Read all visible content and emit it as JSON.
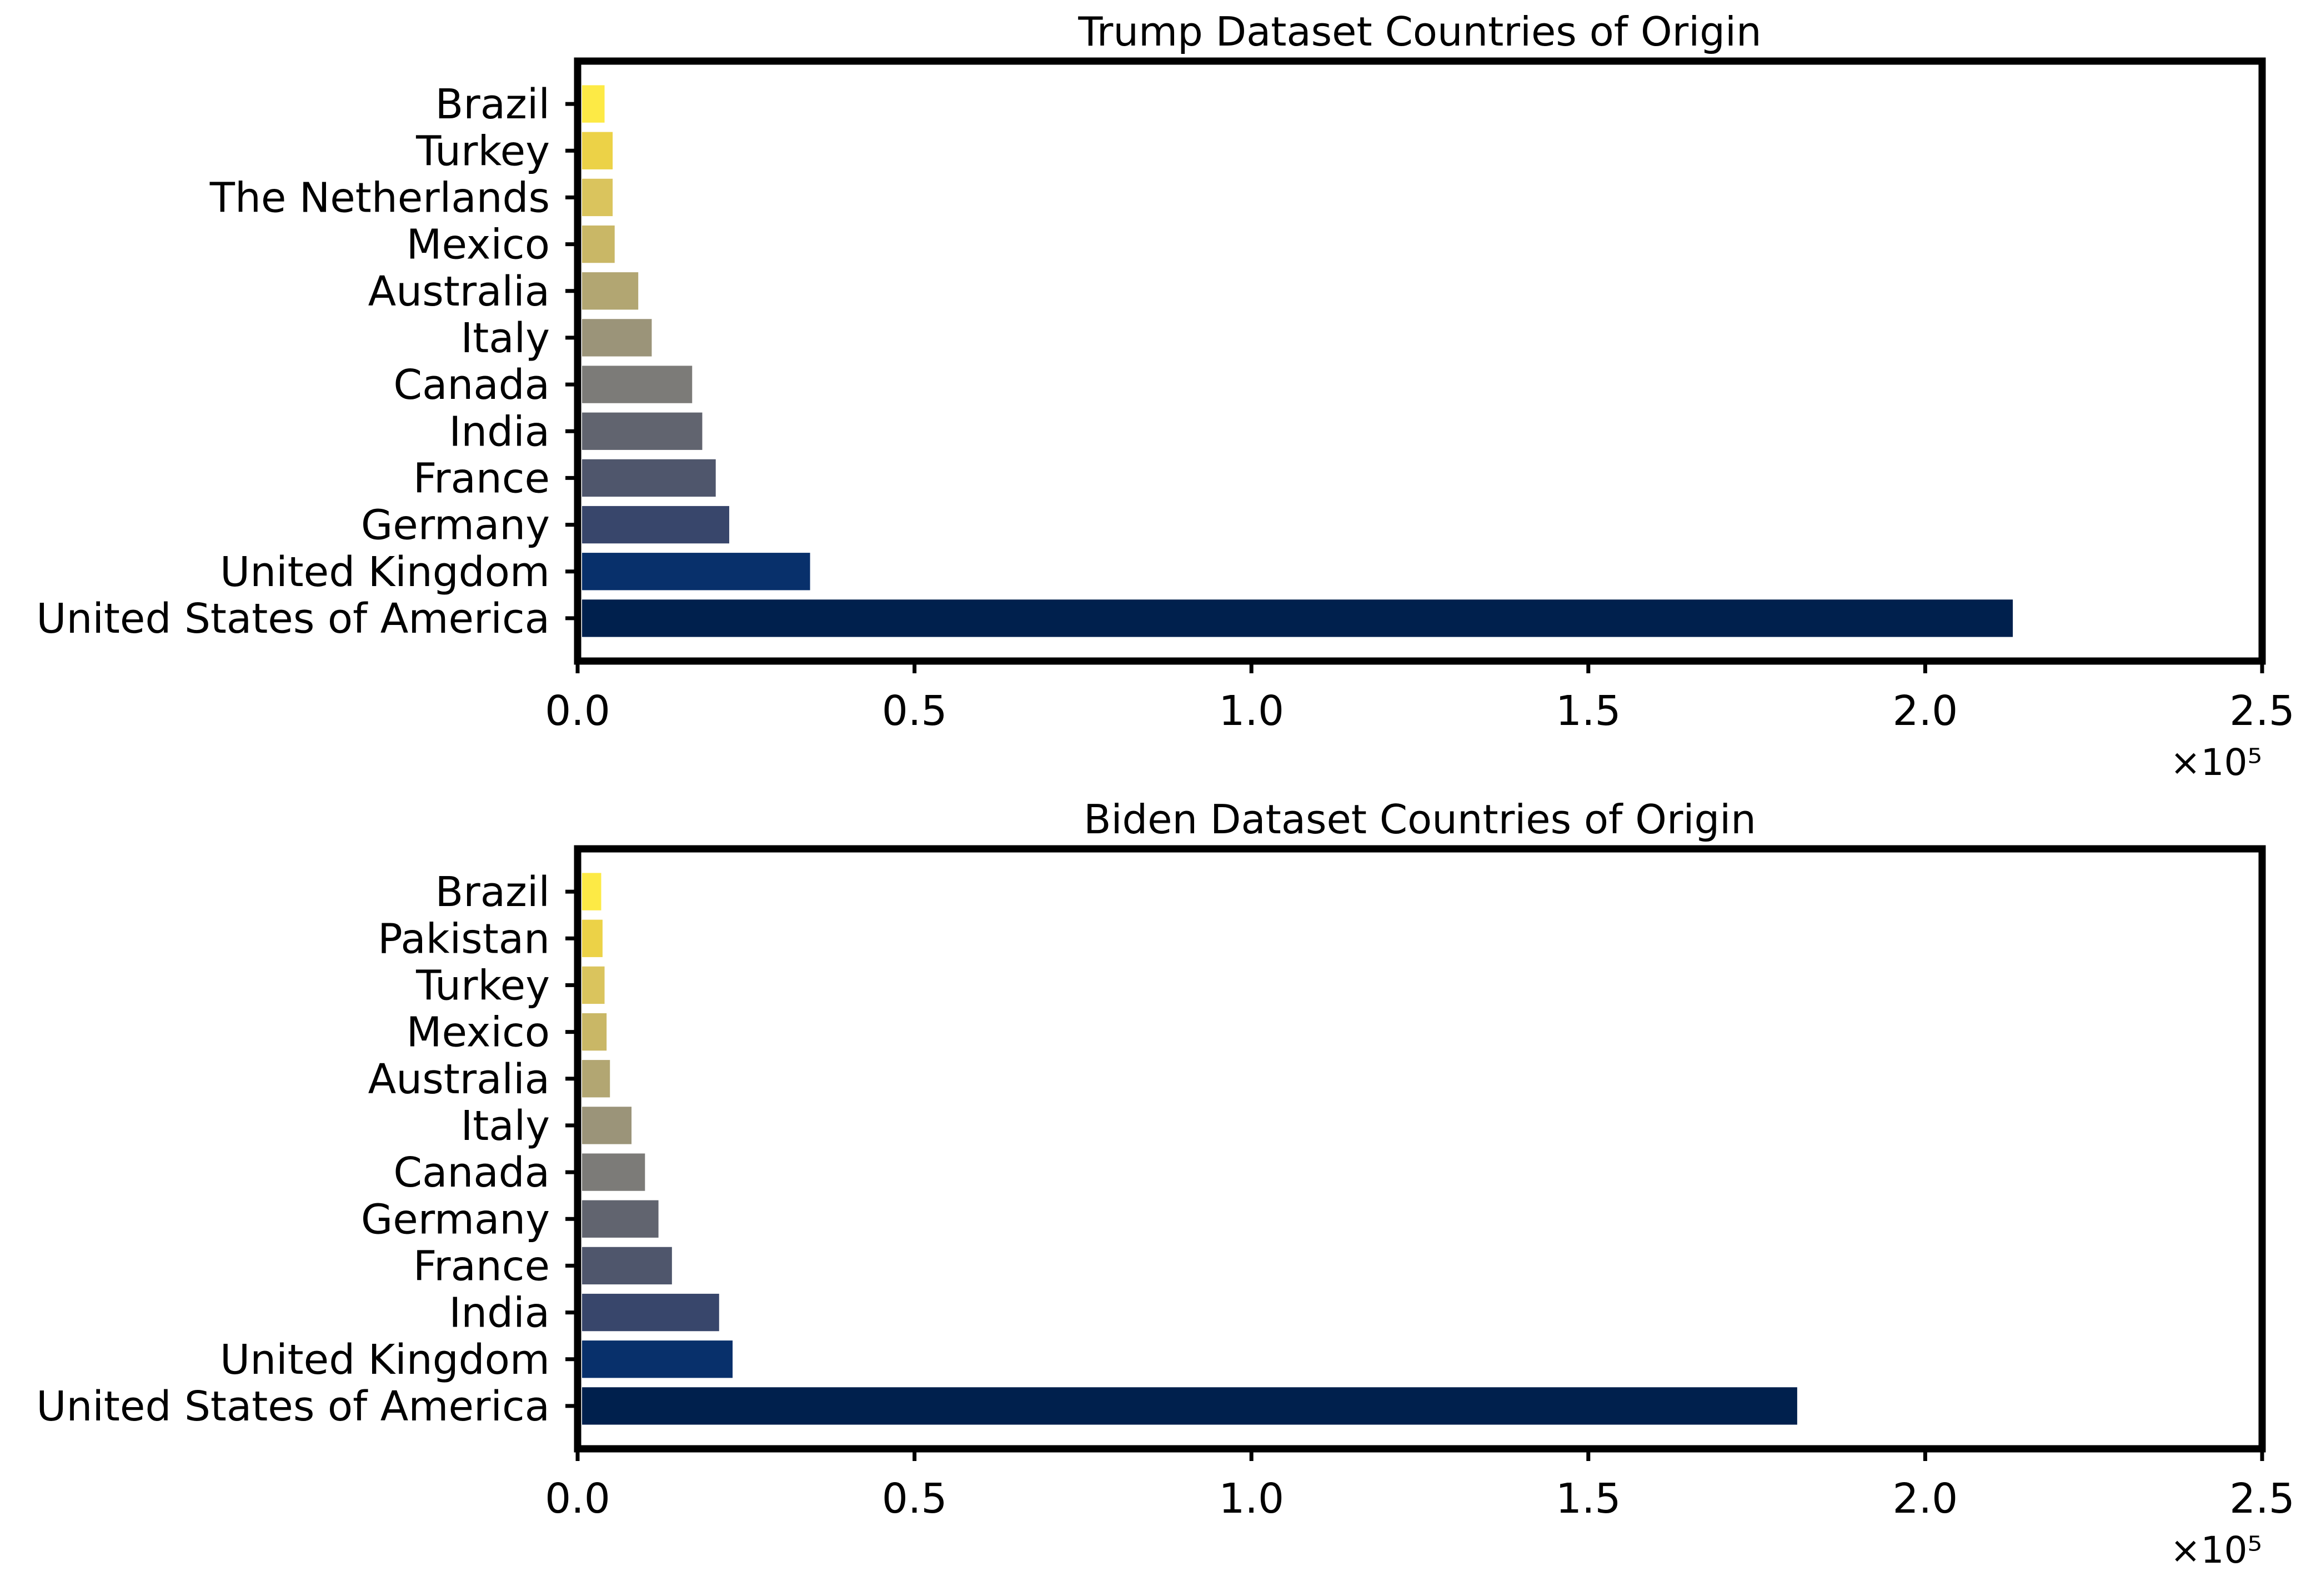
{
  "chart_data": [
    {
      "type": "bar",
      "orientation": "horizontal",
      "title": "Trump Dataset Countries of Origin",
      "xlabel": "",
      "ylabel": "",
      "categories": [
        "United States of America",
        "United Kingdom",
        "Germany",
        "France",
        "India",
        "Canada",
        "Italy",
        "Australia",
        "Mexico",
        "The Netherlands",
        "Turkey",
        "Brazil"
      ],
      "values": [
        213000,
        34500,
        22500,
        20500,
        18500,
        17000,
        11000,
        9000,
        5500,
        5200,
        5200,
        4000
      ],
      "colors": [
        "#00204d",
        "#08306b",
        "#38466b",
        "#4f566c",
        "#61646f",
        "#7c7b78",
        "#9b9479",
        "#b2a672",
        "#c9b766",
        "#dac45d",
        "#ecd247",
        "#fdea45"
      ],
      "xlim": [
        0,
        250000
      ],
      "x_ticks": [
        "0.0",
        "0.5",
        "1.0",
        "1.5",
        "2.0",
        "2.5"
      ],
      "x_multiplier_label": "×10⁵",
      "grid": false,
      "legend": "none"
    },
    {
      "type": "bar",
      "orientation": "horizontal",
      "title": "Biden Dataset Countries of Origin",
      "xlabel": "",
      "ylabel": "",
      "categories": [
        "United States of America",
        "United Kingdom",
        "India",
        "France",
        "Germany",
        "Canada",
        "Italy",
        "Australia",
        "Mexico",
        "Turkey",
        "Pakistan",
        "Brazil"
      ],
      "values": [
        181000,
        23000,
        21000,
        14000,
        12000,
        10000,
        8000,
        4800,
        4300,
        4000,
        3700,
        3500
      ],
      "colors": [
        "#00204d",
        "#08306b",
        "#38466b",
        "#4f566c",
        "#61646f",
        "#7c7b78",
        "#9b9479",
        "#b2a672",
        "#c9b766",
        "#dac45d",
        "#ecd247",
        "#fdea45"
      ],
      "xlim": [
        0,
        250000
      ],
      "x_ticks": [
        "0.0",
        "0.5",
        "1.0",
        "1.5",
        "2.0",
        "2.5"
      ],
      "x_multiplier_label": "×10⁵",
      "grid": false,
      "legend": "none"
    }
  ]
}
